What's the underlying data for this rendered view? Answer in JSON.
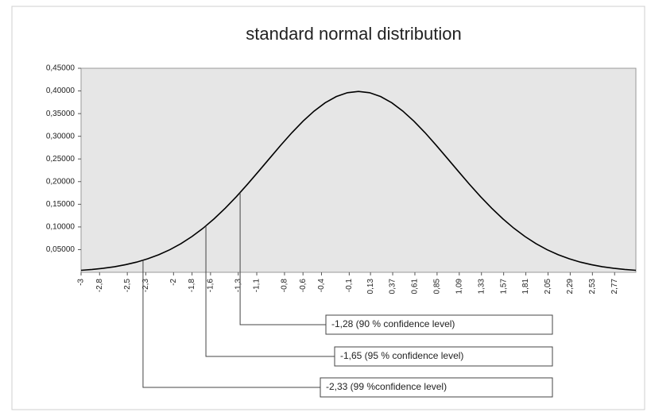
{
  "chart_data": {
    "type": "line",
    "title": "standard normal distribution",
    "x": [
      -3,
      -2.88,
      -2.76,
      -2.64,
      -2.52,
      -2.4,
      -2.28,
      -2.16,
      -2.04,
      -1.92,
      -1.8,
      -1.68,
      -1.56,
      -1.44,
      -1.32,
      -1.2,
      -1.08,
      -0.96,
      -0.84,
      -0.72,
      -0.6,
      -0.48,
      -0.36,
      -0.24,
      -0.12,
      0,
      0.12,
      0.24,
      0.36,
      0.48,
      0.6,
      0.72,
      0.84,
      0.96,
      1.08,
      1.2,
      1.32,
      1.44,
      1.56,
      1.68,
      1.8,
      1.92,
      2.04,
      2.16,
      2.28,
      2.4,
      2.52,
      2.64,
      2.76,
      2.88,
      3
    ],
    "values": [
      0.0044,
      0.0063,
      0.0088,
      0.0122,
      0.0167,
      0.0224,
      0.0297,
      0.0387,
      0.0498,
      0.0632,
      0.079,
      0.0973,
      0.1182,
      0.1415,
      0.1669,
      0.1942,
      0.2227,
      0.2516,
      0.2803,
      0.3079,
      0.3332,
      0.3555,
      0.3739,
      0.3876,
      0.3961,
      0.3989,
      0.3961,
      0.3876,
      0.3739,
      0.3555,
      0.3332,
      0.3079,
      0.2803,
      0.2516,
      0.2227,
      0.1942,
      0.1669,
      0.1415,
      0.1182,
      0.0973,
      0.079,
      0.0632,
      0.0498,
      0.0387,
      0.0297,
      0.0224,
      0.0167,
      0.0122,
      0.0088,
      0.0063,
      0.0044
    ],
    "color": "#000000",
    "xlim": [
      -3,
      3
    ],
    "xticks": [
      -3,
      {
        "value": -2.8,
        "label": "-2,8"
      },
      {
        "value": -2.5,
        "label": "-2,5"
      },
      {
        "value": -2.3,
        "label": "-2,3"
      },
      -2,
      {
        "value": -1.8,
        "label": "-1,8"
      },
      {
        "value": -1.6,
        "label": "-1,6"
      },
      {
        "value": -1.3,
        "label": "-1,3"
      },
      {
        "value": -1.1,
        "label": "-1,1"
      },
      {
        "value": -0.8,
        "label": "-0,8"
      },
      {
        "value": -0.6,
        "label": "-0,6"
      },
      {
        "value": -0.4,
        "label": "-0,4"
      },
      {
        "value": -0.1,
        "label": "-0,1"
      },
      {
        "value": 0.13,
        "label": "0,13"
      },
      {
        "value": 0.37,
        "label": "0,37"
      },
      {
        "value": 0.61,
        "label": "0,61"
      },
      {
        "value": 0.85,
        "label": "0,85"
      },
      {
        "value": 1.09,
        "label": "1,09"
      },
      {
        "value": 1.33,
        "label": "1,33"
      },
      {
        "value": 1.57,
        "label": "1,57"
      },
      {
        "value": 1.81,
        "label": "1,81"
      },
      {
        "value": 2.05,
        "label": "2,05"
      },
      {
        "value": 2.29,
        "label": "2,29"
      },
      {
        "value": 2.53,
        "label": "2,53"
      },
      {
        "value": 2.77,
        "label": "2,77"
      }
    ],
    "ylim": [
      0,
      0.45
    ],
    "yticks": [
      {
        "value": 0.05,
        "label": "0,05000"
      },
      {
        "value": 0.1,
        "label": "0,10000"
      },
      {
        "value": 0.15,
        "label": "0,15000"
      },
      {
        "value": 0.2,
        "label": "0,20000"
      },
      {
        "value": 0.25,
        "label": "0,25000"
      },
      {
        "value": 0.3,
        "label": "0,30000"
      },
      {
        "value": 0.35,
        "label": "0,35000"
      },
      {
        "value": 0.4,
        "label": "0,40000"
      },
      {
        "value": 0.45,
        "label": "0,45000"
      }
    ],
    "annotations": [
      {
        "x": -1.28,
        "y": 0.1758,
        "text": "-1,28 (90 % confidence level)"
      },
      {
        "x": -1.65,
        "y": 0.1023,
        "text": "-1,65 (95 % confidence level)"
      },
      {
        "x": -2.33,
        "y": 0.0264,
        "text": "-2,33 (99 %confidence level)"
      }
    ]
  }
}
